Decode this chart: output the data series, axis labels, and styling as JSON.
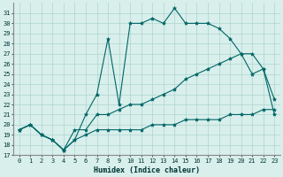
{
  "xlabel": "Humidex (Indice chaleur)",
  "bg_color": "#d8efec",
  "grid_color": "#aed4cf",
  "line_color": "#006666",
  "xlim": [
    -0.5,
    23.5
  ],
  "ylim": [
    17,
    32
  ],
  "yticks": [
    17,
    18,
    19,
    20,
    21,
    22,
    23,
    24,
    25,
    26,
    27,
    28,
    29,
    30,
    31
  ],
  "xticks": [
    0,
    1,
    2,
    3,
    4,
    5,
    6,
    7,
    8,
    9,
    10,
    11,
    12,
    13,
    14,
    15,
    16,
    17,
    18,
    19,
    20,
    21,
    22,
    23
  ],
  "line_jagged_x": [
    0,
    1,
    2,
    3,
    4,
    5,
    6,
    7,
    8,
    9,
    10,
    11,
    12,
    13,
    14,
    15,
    16,
    17,
    18,
    19,
    20,
    21,
    22,
    23
  ],
  "line_jagged_y": [
    19.5,
    20.0,
    19.0,
    18.5,
    17.5,
    18.5,
    21.0,
    23.0,
    28.5,
    22.0,
    30.0,
    30.0,
    30.5,
    30.0,
    31.5,
    30.0,
    30.0,
    30.0,
    29.5,
    28.5,
    27.0,
    25.0,
    25.5,
    22.5
  ],
  "line_diag_x": [
    0,
    1,
    2,
    3,
    4,
    5,
    6,
    7,
    8,
    9,
    10,
    11,
    12,
    13,
    14,
    15,
    16,
    17,
    18,
    19,
    20,
    21,
    22,
    23
  ],
  "line_diag_y": [
    19.5,
    20.0,
    19.0,
    18.5,
    17.5,
    19.5,
    19.5,
    21.0,
    21.0,
    21.5,
    22.0,
    22.0,
    22.5,
    23.0,
    23.5,
    24.5,
    25.0,
    25.5,
    26.0,
    26.5,
    27.0,
    27.0,
    25.5,
    21.0
  ],
  "line_flat_x": [
    0,
    1,
    2,
    3,
    4,
    5,
    6,
    7,
    8,
    9,
    10,
    11,
    12,
    13,
    14,
    15,
    16,
    17,
    18,
    19,
    20,
    21,
    22,
    23
  ],
  "line_flat_y": [
    19.5,
    20.0,
    19.0,
    18.5,
    17.5,
    18.5,
    19.0,
    19.5,
    19.5,
    19.5,
    19.5,
    19.5,
    20.0,
    20.0,
    20.0,
    20.5,
    20.5,
    20.5,
    20.5,
    21.0,
    21.0,
    21.0,
    21.5,
    21.5
  ]
}
